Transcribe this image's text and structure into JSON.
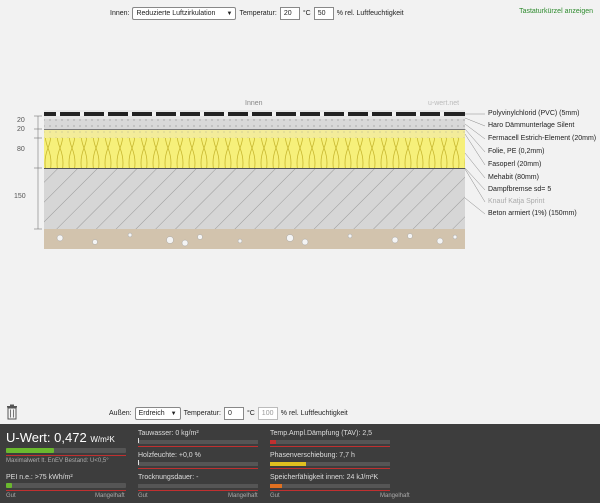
{
  "top": {
    "inside_label": "Innen:",
    "inside_select": "Reduzierte Luftzirkulation",
    "temp_label": "Temperatur:",
    "temp_value": "20",
    "temp_unit": "°C",
    "humidity_value": "50",
    "humidity_label": "% rel. Luftfeuchtigkeit",
    "shortcuts_link": "Tastaturkürzel anzeigen"
  },
  "diagram": {
    "innen_label": "Innen",
    "watermark": "u-wert.net",
    "dims": [
      "20",
      "20",
      "80",
      "150"
    ],
    "layers": [
      {
        "label": "Polyvinylchlorid (PVC) (5mm)",
        "muted": false
      },
      {
        "label": "Haro Dämmunterlage Silent",
        "muted": false
      },
      {
        "label": "Fermacell Estrich-Element (20mm)",
        "muted": false
      },
      {
        "label": "Folie, PE (0,2mm)",
        "muted": false
      },
      {
        "label": "Fasoperl (20mm)",
        "muted": false
      },
      {
        "label": "Mehabit (80mm)",
        "muted": false
      },
      {
        "label": "Dampfbremse sd= 5",
        "muted": false
      },
      {
        "label": "Knauf Katja Sprint",
        "muted": true
      },
      {
        "label": "Beton armiert (1%) (150mm)",
        "muted": false
      }
    ]
  },
  "bottom": {
    "outside_label": "Außen:",
    "outside_select": "Erdreich",
    "temp_label": "Temperatur:",
    "temp_value": "0",
    "temp_unit": "°C",
    "humidity_value": "100",
    "humidity_label": "% rel. Luftfeuchtigkeit"
  },
  "panel": {
    "uwert_label": "U-Wert:",
    "uwert_value": "0,472",
    "uwert_unit": "W/m²K",
    "uwert_fill": 0.4,
    "uwert_note": "Maximalwert lt. EnEV Bestand: U<0,5°",
    "pei_label": "PEI n.e.: >75 kWh/m²",
    "pei_fill": 0.05,
    "gut": "Gut",
    "mangelhaft": "Mangelhaft",
    "tauwasser": "Tauwasser: 0 kg/m²",
    "holzfeuchte": "Holzfeuchte: +0,0 %",
    "trocknungsdauer": "Trocknungsdauer: -",
    "tav": "Temp.Ampl.Dämpfung (TAV): 2,5",
    "tav_fill": 0.05,
    "phase": "Phasenverschiebung: 7,7 h",
    "phase_fill": 0.3,
    "speicher": "Speicherfähigkeit innen: 24 kJ/m²K",
    "speicher_fill": 0.1,
    "colors": {
      "green": "#6ab82e",
      "red": "#c03030",
      "yellow": "#e0c020",
      "orange": "#e07020"
    }
  }
}
